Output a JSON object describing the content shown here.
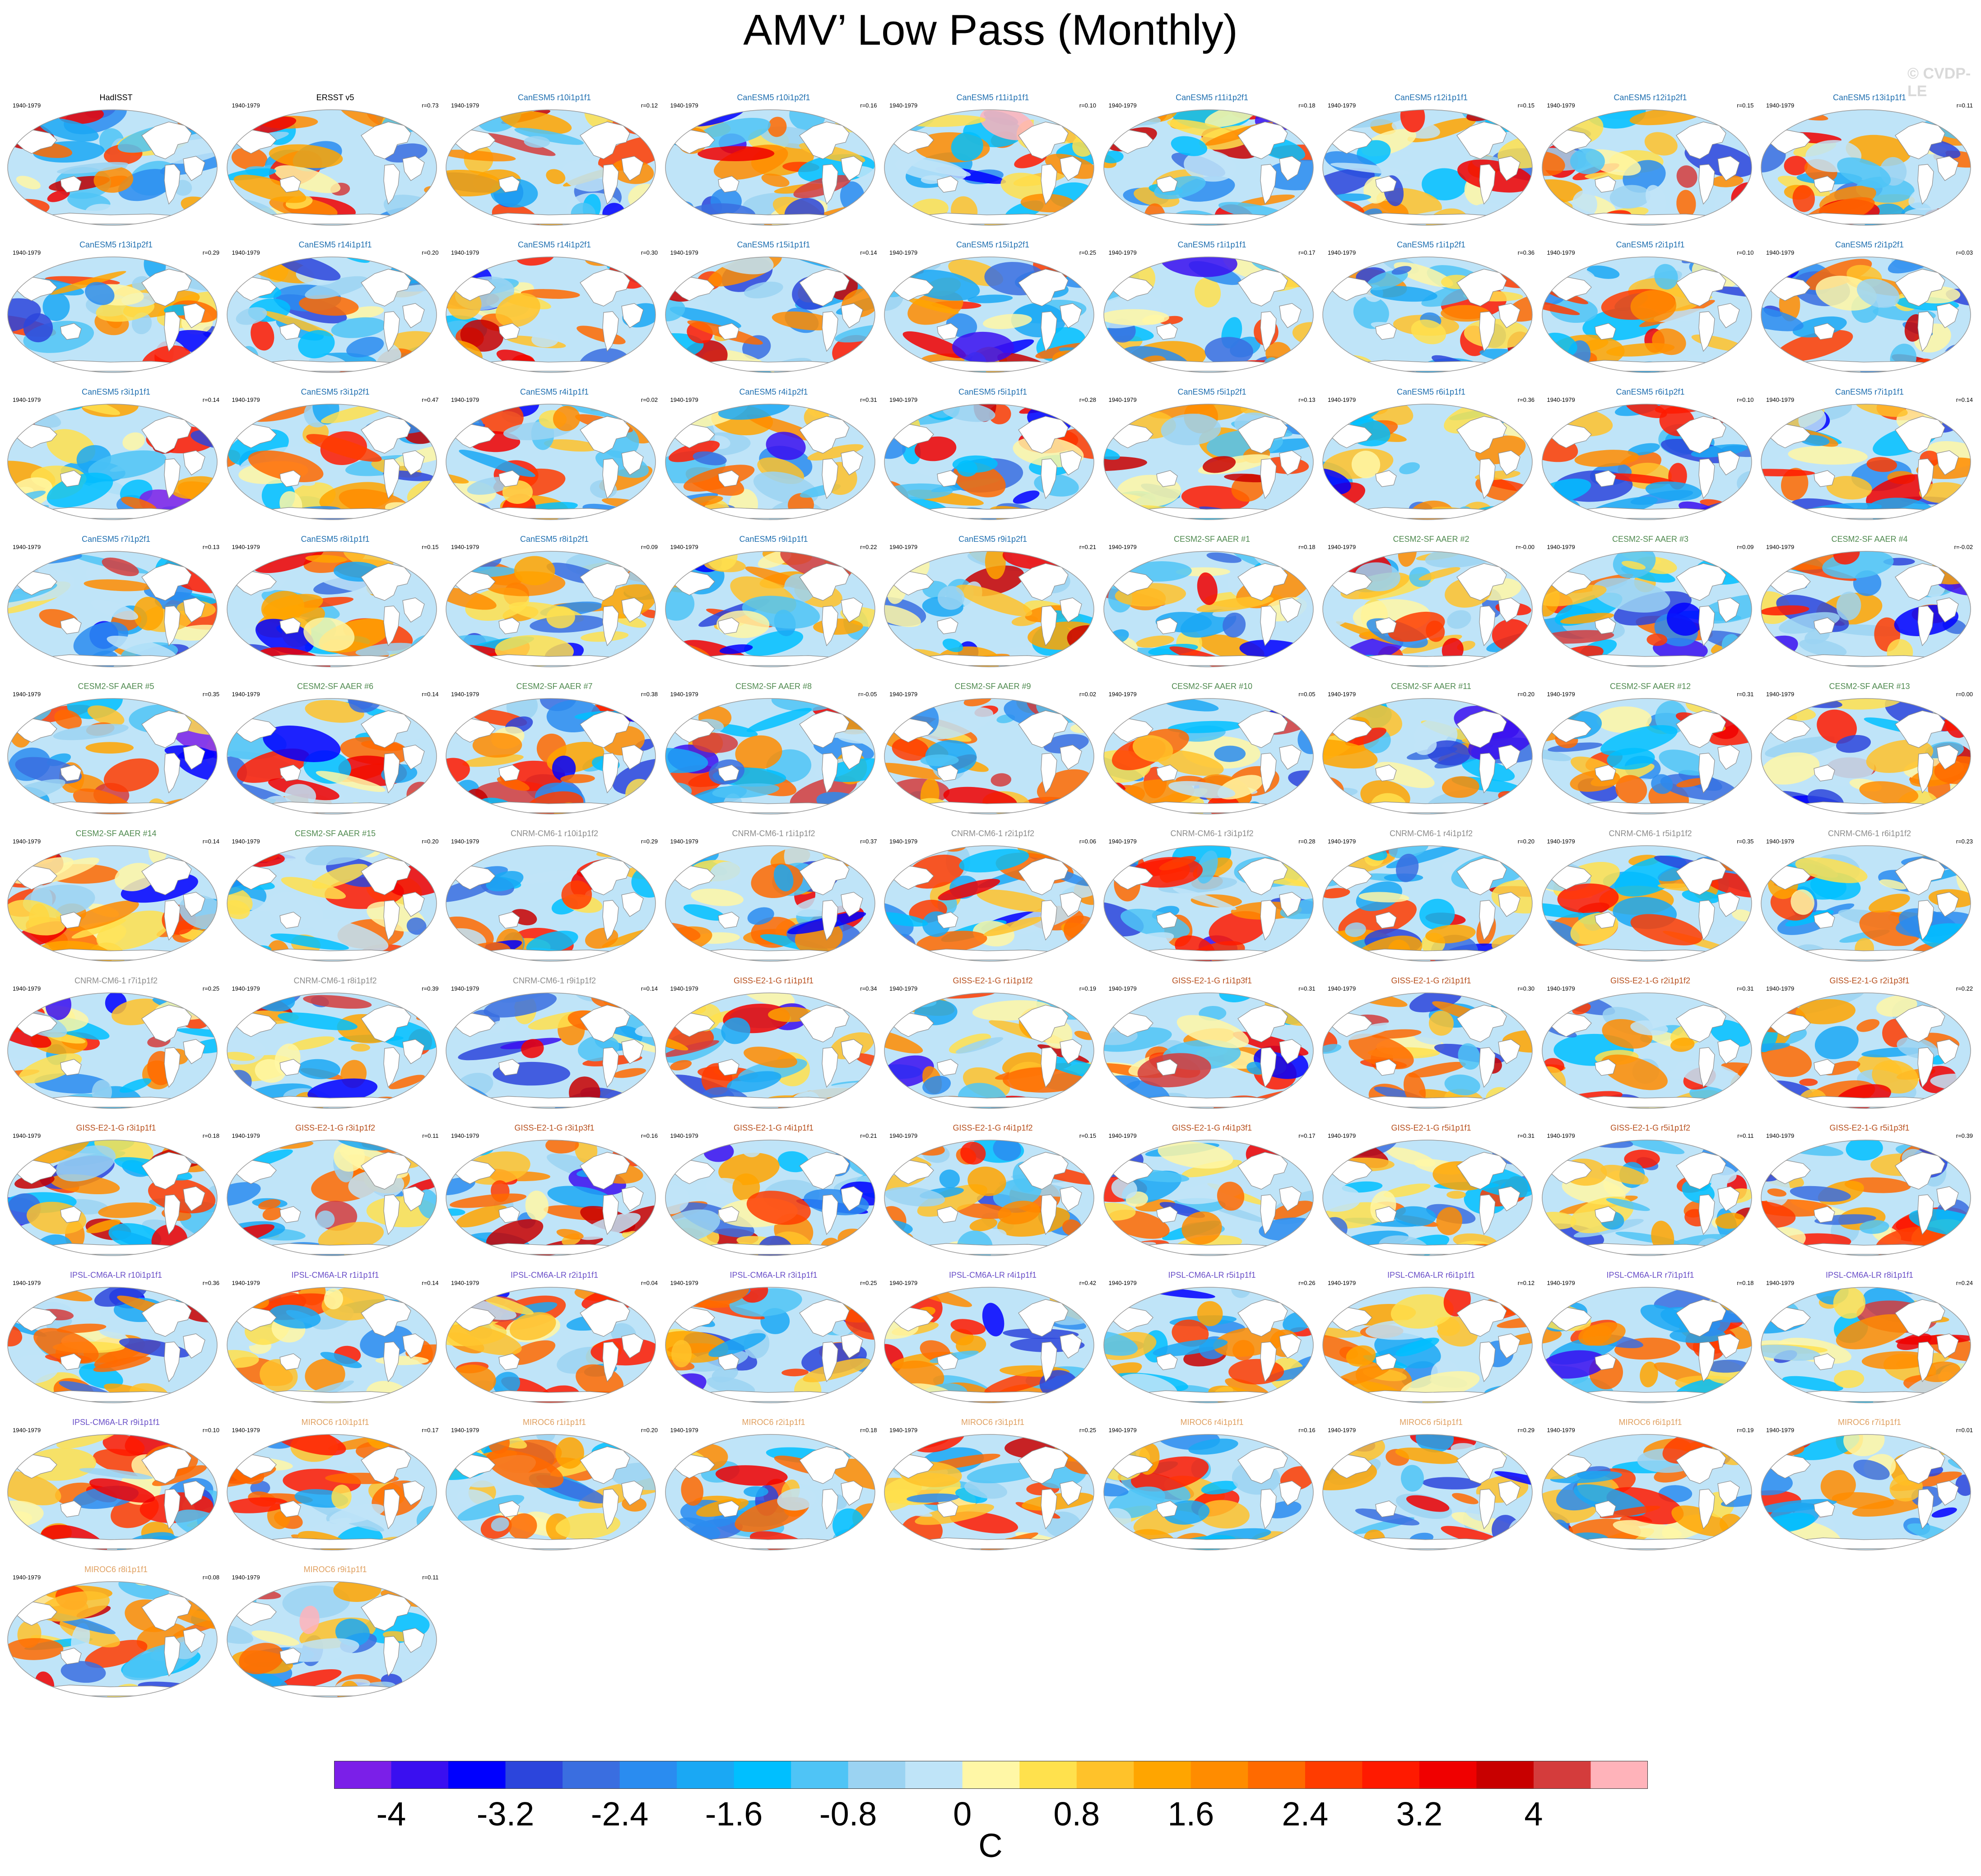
{
  "title": "AMV’ Low Pass (Monthly)",
  "watermark": "© CVDP-LE",
  "period": "1940-1979",
  "colors": {
    "HadISST": "#000000",
    "ERSST": "#000000",
    "CanESM5": "#1f6fb0",
    "CESM2": "#4f8a4f",
    "CNRM": "#8c8c8c",
    "GISS": "#b8501e",
    "IPSL": "#6a4fc8",
    "MIROC6": "#e0a060"
  },
  "panels": [
    {
      "name": "HadISST",
      "r": "",
      "g": "HadISST"
    },
    {
      "name": "ERSST v5",
      "r": "r=0.73",
      "g": "ERSST"
    },
    {
      "name": "CanESM5 r10i1p1f1",
      "r": "r=0.12",
      "g": "CanESM5"
    },
    {
      "name": "CanESM5 r10i1p2f1",
      "r": "r=0.16",
      "g": "CanESM5"
    },
    {
      "name": "CanESM5 r11i1p1f1",
      "r": "r=0.10",
      "g": "CanESM5"
    },
    {
      "name": "CanESM5 r11i1p2f1",
      "r": "r=0.18",
      "g": "CanESM5"
    },
    {
      "name": "CanESM5 r12i1p1f1",
      "r": "r=0.15",
      "g": "CanESM5"
    },
    {
      "name": "CanESM5 r12i1p2f1",
      "r": "r=0.15",
      "g": "CanESM5"
    },
    {
      "name": "CanESM5 r13i1p1f1",
      "r": "r=0.11",
      "g": "CanESM5"
    },
    {
      "name": "CanESM5 r13i1p2f1",
      "r": "r=0.29",
      "g": "CanESM5"
    },
    {
      "name": "CanESM5 r14i1p1f1",
      "r": "r=0.20",
      "g": "CanESM5"
    },
    {
      "name": "CanESM5 r14i1p2f1",
      "r": "r=0.30",
      "g": "CanESM5"
    },
    {
      "name": "CanESM5 r15i1p1f1",
      "r": "r=0.14",
      "g": "CanESM5"
    },
    {
      "name": "CanESM5 r15i1p2f1",
      "r": "r=0.25",
      "g": "CanESM5"
    },
    {
      "name": "CanESM5 r1i1p1f1",
      "r": "r=0.17",
      "g": "CanESM5"
    },
    {
      "name": "CanESM5 r1i1p2f1",
      "r": "r=0.36",
      "g": "CanESM5"
    },
    {
      "name": "CanESM5 r2i1p1f1",
      "r": "r=0.10",
      "g": "CanESM5"
    },
    {
      "name": "CanESM5 r2i1p2f1",
      "r": "r=0.03",
      "g": "CanESM5"
    },
    {
      "name": "CanESM5 r3i1p1f1",
      "r": "r=0.14",
      "g": "CanESM5"
    },
    {
      "name": "CanESM5 r3i1p2f1",
      "r": "r=0.47",
      "g": "CanESM5"
    },
    {
      "name": "CanESM5 r4i1p1f1",
      "r": "r=0.02",
      "g": "CanESM5"
    },
    {
      "name": "CanESM5 r4i1p2f1",
      "r": "r=0.31",
      "g": "CanESM5"
    },
    {
      "name": "CanESM5 r5i1p1f1",
      "r": "r=0.28",
      "g": "CanESM5"
    },
    {
      "name": "CanESM5 r5i1p2f1",
      "r": "r=0.13",
      "g": "CanESM5"
    },
    {
      "name": "CanESM5 r6i1p1f1",
      "r": "r=0.36",
      "g": "CanESM5"
    },
    {
      "name": "CanESM5 r6i1p2f1",
      "r": "r=0.10",
      "g": "CanESM5"
    },
    {
      "name": "CanESM5 r7i1p1f1",
      "r": "r=0.14",
      "g": "CanESM5"
    },
    {
      "name": "CanESM5 r7i1p2f1",
      "r": "r=0.13",
      "g": "CanESM5"
    },
    {
      "name": "CanESM5 r8i1p1f1",
      "r": "r=0.15",
      "g": "CanESM5"
    },
    {
      "name": "CanESM5 r8i1p2f1",
      "r": "r=0.09",
      "g": "CanESM5"
    },
    {
      "name": "CanESM5 r9i1p1f1",
      "r": "r=0.22",
      "g": "CanESM5"
    },
    {
      "name": "CanESM5 r9i1p2f1",
      "r": "r=0.21",
      "g": "CanESM5"
    },
    {
      "name": "CESM2-SF AAER #1",
      "r": "r=0.18",
      "g": "CESM2"
    },
    {
      "name": "CESM2-SF AAER #2",
      "r": "r=-0.00",
      "g": "CESM2"
    },
    {
      "name": "CESM2-SF AAER #3",
      "r": "r=0.09",
      "g": "CESM2"
    },
    {
      "name": "CESM2-SF AAER #4",
      "r": "r=-0.02",
      "g": "CESM2"
    },
    {
      "name": "CESM2-SF AAER #5",
      "r": "r=0.35",
      "g": "CESM2"
    },
    {
      "name": "CESM2-SF AAER #6",
      "r": "r=0.14",
      "g": "CESM2"
    },
    {
      "name": "CESM2-SF AAER #7",
      "r": "r=0.38",
      "g": "CESM2"
    },
    {
      "name": "CESM2-SF AAER #8",
      "r": "r=-0.05",
      "g": "CESM2"
    },
    {
      "name": "CESM2-SF AAER #9",
      "r": "r=0.02",
      "g": "CESM2"
    },
    {
      "name": "CESM2-SF AAER #10",
      "r": "r=0.05",
      "g": "CESM2"
    },
    {
      "name": "CESM2-SF AAER #11",
      "r": "r=0.20",
      "g": "CESM2"
    },
    {
      "name": "CESM2-SF AAER #12",
      "r": "r=0.31",
      "g": "CESM2"
    },
    {
      "name": "CESM2-SF AAER #13",
      "r": "r=0.00",
      "g": "CESM2"
    },
    {
      "name": "CESM2-SF AAER #14",
      "r": "r=0.14",
      "g": "CESM2"
    },
    {
      "name": "CESM2-SF AAER #15",
      "r": "r=0.20",
      "g": "CESM2"
    },
    {
      "name": "CNRM-CM6-1 r10i1p1f2",
      "r": "r=0.29",
      "g": "CNRM"
    },
    {
      "name": "CNRM-CM6-1 r1i1p1f2",
      "r": "r=0.37",
      "g": "CNRM"
    },
    {
      "name": "CNRM-CM6-1 r2i1p1f2",
      "r": "r=0.06",
      "g": "CNRM"
    },
    {
      "name": "CNRM-CM6-1 r3i1p1f2",
      "r": "r=0.28",
      "g": "CNRM"
    },
    {
      "name": "CNRM-CM6-1 r4i1p1f2",
      "r": "r=0.20",
      "g": "CNRM"
    },
    {
      "name": "CNRM-CM6-1 r5i1p1f2",
      "r": "r=0.35",
      "g": "CNRM"
    },
    {
      "name": "CNRM-CM6-1 r6i1p1f2",
      "r": "r=0.23",
      "g": "CNRM"
    },
    {
      "name": "CNRM-CM6-1 r7i1p1f2",
      "r": "r=0.25",
      "g": "CNRM"
    },
    {
      "name": "CNRM-CM6-1 r8i1p1f2",
      "r": "r=0.39",
      "g": "CNRM"
    },
    {
      "name": "CNRM-CM6-1 r9i1p1f2",
      "r": "r=0.14",
      "g": "CNRM"
    },
    {
      "name": "GISS-E2-1-G r1i1p1f1",
      "r": "r=0.34",
      "g": "GISS"
    },
    {
      "name": "GISS-E2-1-G r1i1p1f2",
      "r": "r=0.19",
      "g": "GISS"
    },
    {
      "name": "GISS-E2-1-G r1i1p3f1",
      "r": "r=0.31",
      "g": "GISS"
    },
    {
      "name": "GISS-E2-1-G r2i1p1f1",
      "r": "r=0.30",
      "g": "GISS"
    },
    {
      "name": "GISS-E2-1-G r2i1p1f2",
      "r": "r=0.31",
      "g": "GISS"
    },
    {
      "name": "GISS-E2-1-G r2i1p3f1",
      "r": "r=0.22",
      "g": "GISS"
    },
    {
      "name": "GISS-E2-1-G r3i1p1f1",
      "r": "r=0.18",
      "g": "GISS"
    },
    {
      "name": "GISS-E2-1-G r3i1p1f2",
      "r": "r=0.11",
      "g": "GISS"
    },
    {
      "name": "GISS-E2-1-G r3i1p3f1",
      "r": "r=0.16",
      "g": "GISS"
    },
    {
      "name": "GISS-E2-1-G r4i1p1f1",
      "r": "r=0.21",
      "g": "GISS"
    },
    {
      "name": "GISS-E2-1-G r4i1p1f2",
      "r": "r=0.15",
      "g": "GISS"
    },
    {
      "name": "GISS-E2-1-G r4i1p3f1",
      "r": "r=0.17",
      "g": "GISS"
    },
    {
      "name": "GISS-E2-1-G r5i1p1f1",
      "r": "r=0.31",
      "g": "GISS"
    },
    {
      "name": "GISS-E2-1-G r5i1p1f2",
      "r": "r=0.11",
      "g": "GISS"
    },
    {
      "name": "GISS-E2-1-G r5i1p3f1",
      "r": "r=0.39",
      "g": "GISS"
    },
    {
      "name": "IPSL-CM6A-LR r10i1p1f1",
      "r": "r=0.36",
      "g": "IPSL"
    },
    {
      "name": "IPSL-CM6A-LR r1i1p1f1",
      "r": "r=0.14",
      "g": "IPSL"
    },
    {
      "name": "IPSL-CM6A-LR r2i1p1f1",
      "r": "r=0.04",
      "g": "IPSL"
    },
    {
      "name": "IPSL-CM6A-LR r3i1p1f1",
      "r": "r=0.25",
      "g": "IPSL"
    },
    {
      "name": "IPSL-CM6A-LR r4i1p1f1",
      "r": "r=0.42",
      "g": "IPSL"
    },
    {
      "name": "IPSL-CM6A-LR r5i1p1f1",
      "r": "r=0.26",
      "g": "IPSL"
    },
    {
      "name": "IPSL-CM6A-LR r6i1p1f1",
      "r": "r=0.12",
      "g": "IPSL"
    },
    {
      "name": "IPSL-CM6A-LR r7i1p1f1",
      "r": "r=0.18",
      "g": "IPSL"
    },
    {
      "name": "IPSL-CM6A-LR r8i1p1f1",
      "r": "r=0.24",
      "g": "IPSL"
    },
    {
      "name": "IPSL-CM6A-LR r9i1p1f1",
      "r": "r=0.10",
      "g": "IPSL"
    },
    {
      "name": "MIROC6 r10i1p1f1",
      "r": "r=0.17",
      "g": "MIROC6"
    },
    {
      "name": "MIROC6 r1i1p1f1",
      "r": "r=0.20",
      "g": "MIROC6"
    },
    {
      "name": "MIROC6 r2i1p1f1",
      "r": "r=0.18",
      "g": "MIROC6"
    },
    {
      "name": "MIROC6 r3i1p1f1",
      "r": "r=0.25",
      "g": "MIROC6"
    },
    {
      "name": "MIROC6 r4i1p1f1",
      "r": "r=0.16",
      "g": "MIROC6"
    },
    {
      "name": "MIROC6 r5i1p1f1",
      "r": "r=0.29",
      "g": "MIROC6"
    },
    {
      "name": "MIROC6 r6i1p1f1",
      "r": "r=0.19",
      "g": "MIROC6"
    },
    {
      "name": "MIROC6 r7i1p1f1",
      "r": "r=0.01",
      "g": "MIROC6"
    },
    {
      "name": "MIROC6 r8i1p1f1",
      "r": "r=0.08",
      "g": "MIROC6"
    },
    {
      "name": "MIROC6 r9i1p1f1",
      "r": "r=0.11",
      "g": "MIROC6"
    }
  ],
  "colorbar": {
    "unit": "C",
    "labels": [
      "-4",
      "-3.2",
      "-2.4",
      "-1.6",
      "-0.8",
      "0",
      "0.8",
      "1.6",
      "2.4",
      "3.2",
      "4"
    ],
    "colors": [
      "#7b1fe8",
      "#3a0ff0",
      "#0000ff",
      "#2c45dc",
      "#3a6ee0",
      "#2a8cf0",
      "#1aa8f4",
      "#00bfff",
      "#4fc4f6",
      "#9bd3f2",
      "#bfe4f8",
      "#fff7a6",
      "#ffe14d",
      "#ffc22a",
      "#ffa500",
      "#ff8c00",
      "#ff6a00",
      "#ff3c00",
      "#ff1a00",
      "#f00000",
      "#c80000",
      "#d43c3c",
      "#ffb3ba"
    ]
  }
}
